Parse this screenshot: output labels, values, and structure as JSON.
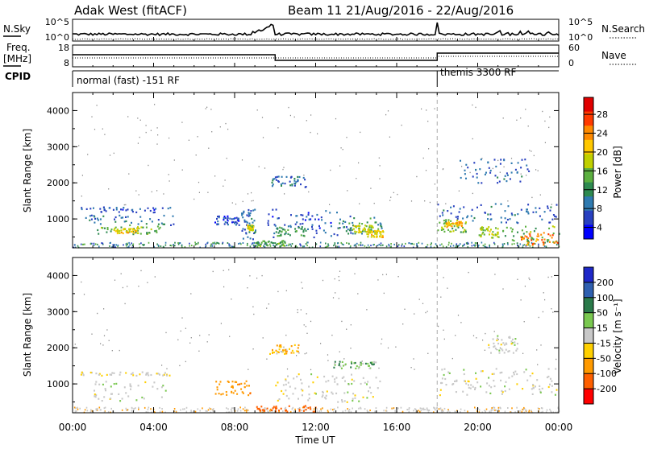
{
  "header": {
    "radar": "Adak West (fitACF)",
    "beam": "Beam 11 21/Aug/2016 - 22/Aug/2016"
  },
  "strip": {
    "nsky_label": "N.Sky",
    "nsky_ticks": [
      "10^5",
      "10^0"
    ],
    "nsearch_ticks": [
      "10^5",
      "10^0"
    ],
    "nsearch_label": "N.Search",
    "freq_label_top": "Freq.",
    "freq_label_unit": "[MHz]",
    "freq_ticks": [
      "18",
      "8"
    ],
    "nave_ticks": [
      "60",
      "0"
    ],
    "nave_label": "Nave",
    "cpid_label": "CPID",
    "cpid_1": "normal (fast) -151 RF",
    "cpid_2": "themis 3300 RF",
    "cpid_switch_hour": 18
  },
  "panels": {
    "ylabel": "Slant Range [km]",
    "yticks": [
      "4000",
      "3000",
      "2000",
      "1000"
    ],
    "xlabel": "Time UT",
    "xticks": [
      "00:00",
      "04:00",
      "08:00",
      "12:00",
      "16:00",
      "20:00",
      "00:00"
    ]
  },
  "colorbars": {
    "power": {
      "label": "Power [dB]",
      "ticks": [
        "28",
        "24",
        "20",
        "16",
        "12",
        "8",
        "4"
      ],
      "colors": [
        "#e00000",
        "#ff3a00",
        "#ff8a00",
        "#ffc800",
        "#c0d000",
        "#5cb040",
        "#2e8a50",
        "#2f7ab0",
        "#2840c0",
        "#0000ff"
      ]
    },
    "velocity": {
      "label": "Velocity [m s⁻¹]",
      "ticks": [
        "200",
        "100",
        "50",
        "15",
        "-15",
        "-50",
        "-100",
        "-200"
      ],
      "colors": [
        "#1e28c8",
        "#2f60b0",
        "#2a7a4a",
        "#7ac850",
        "#c8c8c8",
        "#ffd000",
        "#ff9a00",
        "#ff6000",
        "#ff0000"
      ]
    }
  },
  "chart_data": {
    "type": "heatmap",
    "x_unit": "hours UT",
    "xlim": [
      0,
      24
    ],
    "ylim": [
      200,
      4500
    ],
    "power_clusters": [
      {
        "t0": 0.3,
        "t1": 4.8,
        "r0": 1200,
        "r1": 1350,
        "v": 7
      },
      {
        "t0": 0.5,
        "t1": 5.0,
        "r0": 850,
        "r1": 1150,
        "v": 9
      },
      {
        "t0": 1.2,
        "t1": 4.3,
        "r0": 600,
        "r1": 850,
        "v": 14
      },
      {
        "t0": 2.0,
        "t1": 3.2,
        "r0": 620,
        "r1": 760,
        "v": 20
      },
      {
        "t0": 7.0,
        "t1": 8.2,
        "r0": 850,
        "r1": 1100,
        "v": 6
      },
      {
        "t0": 8.3,
        "t1": 9.0,
        "r0": 400,
        "r1": 1300,
        "v": 8
      },
      {
        "t0": 8.6,
        "t1": 8.9,
        "r0": 700,
        "r1": 850,
        "v": 18
      },
      {
        "t0": 9.8,
        "t1": 11.5,
        "r0": 1900,
        "r1": 2200,
        "v": 8
      },
      {
        "t0": 9.6,
        "t1": 13.8,
        "r0": 500,
        "r1": 1300,
        "v": 7
      },
      {
        "t0": 10.0,
        "t1": 11.5,
        "r0": 550,
        "r1": 800,
        "v": 13
      },
      {
        "t0": 13.0,
        "t1": 15.3,
        "r0": 600,
        "r1": 1100,
        "v": 12
      },
      {
        "t0": 13.8,
        "t1": 14.8,
        "r0": 650,
        "r1": 850,
        "v": 18
      },
      {
        "t0": 14.5,
        "t1": 15.3,
        "r0": 500,
        "r1": 700,
        "v": 20
      },
      {
        "t0": 9.0,
        "t1": 10.5,
        "r0": 250,
        "r1": 420,
        "v": 14
      },
      {
        "t0": 18.0,
        "t1": 24.0,
        "r0": 900,
        "r1": 1450,
        "v": 8
      },
      {
        "t0": 18.0,
        "t1": 19.5,
        "r0": 650,
        "r1": 1000,
        "v": 16
      },
      {
        "t0": 18.4,
        "t1": 19.2,
        "r0": 800,
        "r1": 950,
        "v": 22
      },
      {
        "t0": 20.0,
        "t1": 21.0,
        "r0": 500,
        "r1": 800,
        "v": 18
      },
      {
        "t0": 21.2,
        "t1": 24.0,
        "r0": 380,
        "r1": 820,
        "v": 14
      },
      {
        "t0": 22.0,
        "t1": 24.0,
        "r0": 300,
        "r1": 650,
        "v": 25
      },
      {
        "t0": 19.0,
        "t1": 22.5,
        "r0": 2000,
        "r1": 2700,
        "v": 8
      }
    ],
    "velocity_clusters": [
      {
        "t0": 0.3,
        "t1": 4.8,
        "r0": 1250,
        "r1": 1350,
        "v": -5
      },
      {
        "t0": 1.0,
        "t1": 4.6,
        "r0": 550,
        "r1": 1100,
        "v": 0
      },
      {
        "t0": 7.0,
        "t1": 8.8,
        "r0": 700,
        "r1": 1100,
        "v": -60
      },
      {
        "t0": 9.7,
        "t1": 11.2,
        "r0": 1850,
        "r1": 2100,
        "v": -30
      },
      {
        "t0": 10.0,
        "t1": 15.2,
        "r0": 500,
        "r1": 1300,
        "v": 0
      },
      {
        "t0": 12.8,
        "t1": 15.0,
        "r0": 1450,
        "r1": 1650,
        "v": 30
      },
      {
        "t0": 9.0,
        "t1": 12.0,
        "r0": 250,
        "r1": 420,
        "v": -100
      },
      {
        "t0": 18.0,
        "t1": 24.0,
        "r0": 700,
        "r1": 1450,
        "v": 0
      },
      {
        "t0": 20.5,
        "t1": 22.0,
        "r0": 1850,
        "r1": 2350,
        "v": 0
      }
    ]
  }
}
